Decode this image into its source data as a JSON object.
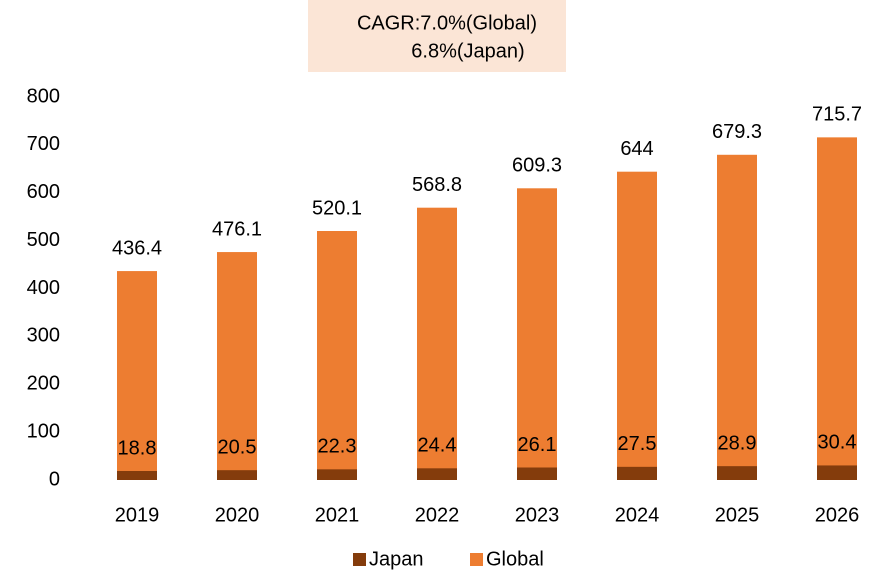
{
  "chart_data": {
    "type": "bar",
    "annotation": [
      "CAGR:7.0%(Global)",
      "6.8%(Japan)"
    ],
    "categories": [
      "2019",
      "2020",
      "2021",
      "2022",
      "2023",
      "2024",
      "2025",
      "2026"
    ],
    "series": [
      {
        "name": "Japan",
        "color": "#843c0c",
        "values": [
          18.8,
          20.5,
          22.3,
          24.4,
          26.1,
          27.5,
          28.9,
          30.4
        ]
      },
      {
        "name": "Global",
        "color": "#ed7d31",
        "values": [
          436.4,
          476.1,
          520.1,
          568.8,
          609.3,
          644,
          679.3,
          715.7
        ]
      }
    ],
    "ylim": [
      0,
      800
    ],
    "yticks": [
      0,
      100,
      200,
      300,
      400,
      500,
      600,
      700,
      800
    ],
    "grid": false,
    "legend": "bottom",
    "overlap": true
  }
}
